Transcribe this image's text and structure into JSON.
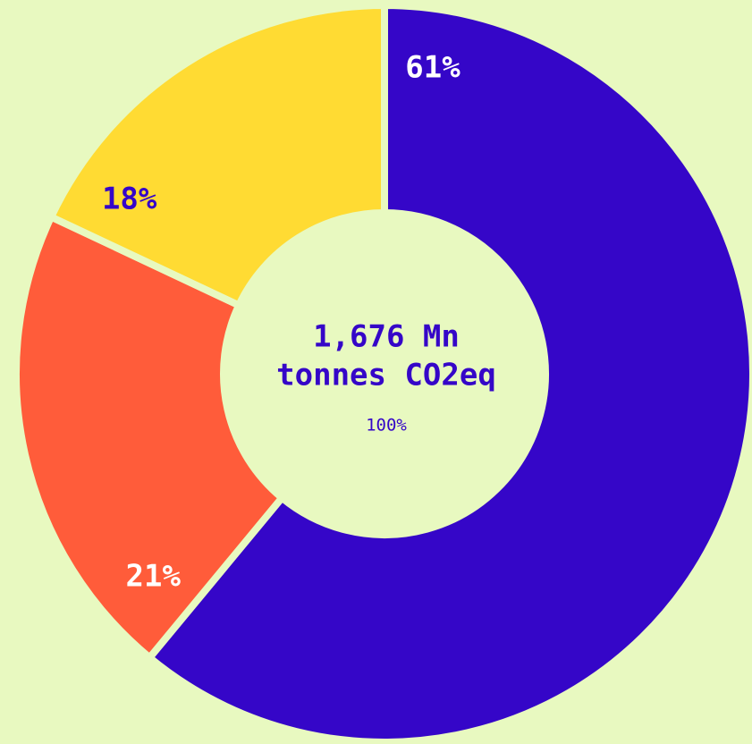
{
  "chart_data": {
    "type": "donut",
    "center_label": [
      "1,676 Mn",
      "tonnes CO2eq"
    ],
    "center_sublabel": "100%",
    "values": [
      61,
      21,
      18
    ],
    "value_labels": [
      "61%",
      "21%",
      "18%"
    ],
    "colors": [
      "#3506c8",
      "#ff5c3a",
      "#ffdb33"
    ],
    "label_colors": [
      "#ffffff",
      "#ffffff",
      "#3506c8"
    ]
  }
}
